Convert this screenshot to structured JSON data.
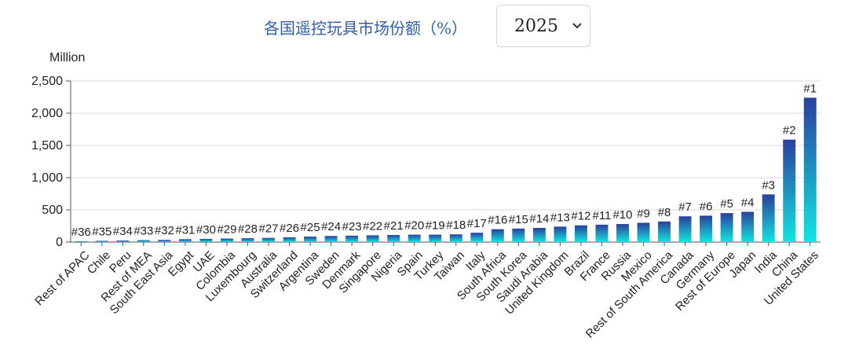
{
  "header": {
    "title": "各国遥控玩具市场份额（%）",
    "year_selected": "2025"
  },
  "chart_data": {
    "type": "bar",
    "unit_label": "Million",
    "ylim": [
      0,
      2500
    ],
    "yticks": [
      0,
      500,
      1000,
      1500,
      2000,
      2500
    ],
    "ytick_labels": [
      "0",
      "500",
      "1,000",
      "1,500",
      "2,000",
      "2,500"
    ],
    "grid": true,
    "categories": [
      "Rest of APAC",
      "Chile",
      "Peru",
      "Rest of MEA",
      "South East Asia",
      "Egypt",
      "UAE",
      "Colombia",
      "Luxembourg",
      "Australia",
      "Switzerland",
      "Argentina",
      "Sweden",
      "Denmark",
      "Singapore",
      "Nigeria",
      "Spain",
      "Turkey",
      "Taiwan",
      "Italy",
      "South Africa",
      "South Korea",
      "Saudi Arabia",
      "United Kingdom",
      "Brazil",
      "France",
      "Russia",
      "Mexico",
      "Rest of South America",
      "Canada",
      "Germany",
      "Rest of Europe",
      "Japan",
      "India",
      "China",
      "United States"
    ],
    "values": [
      10,
      20,
      25,
      30,
      35,
      45,
      50,
      55,
      60,
      65,
      75,
      85,
      95,
      100,
      105,
      110,
      115,
      115,
      120,
      145,
      200,
      210,
      220,
      240,
      260,
      270,
      280,
      300,
      320,
      400,
      410,
      450,
      470,
      740,
      1590,
      2240
    ],
    "ranks": [
      "#36",
      "#35",
      "#34",
      "#33",
      "#32",
      "#31",
      "#30",
      "#29",
      "#28",
      "#27",
      "#26",
      "#25",
      "#24",
      "#23",
      "#22",
      "#21",
      "#20",
      "#19",
      "#18",
      "#17",
      "#16",
      "#15",
      "#14",
      "#13",
      "#12",
      "#11",
      "#10",
      "#9",
      "#8",
      "#7",
      "#6",
      "#5",
      "#4",
      "#3",
      "#2",
      "#1"
    ],
    "colors": {
      "bar_top": "#2b3f9e",
      "bar_bottom": "#12e6e0",
      "grid": "#d9d9d9",
      "axis": "#555555",
      "text": "#222222"
    }
  }
}
